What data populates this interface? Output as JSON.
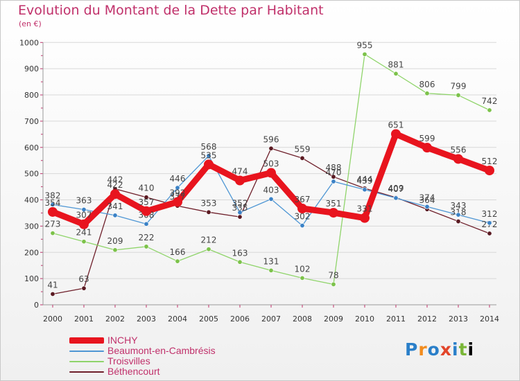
{
  "header": {
    "title": "Evolution du Montant de la Dette par Habitant",
    "unit": "(en €)"
  },
  "logo": {
    "text": "Proxiti"
  },
  "colors": {
    "grid": "#d8d8d8",
    "axis_text": "#333333",
    "label_text": "#444444",
    "title": "#c0306a"
  },
  "chart_data": {
    "type": "line",
    "title": "Evolution du Montant de la Dette par Habitant",
    "ylabel": "(en €)",
    "xlabel": "",
    "x": [
      "2000",
      "2001",
      "2002",
      "2003",
      "2004",
      "2005",
      "2006",
      "2007",
      "2008",
      "2009",
      "2010",
      "2011",
      "2012",
      "2013",
      "2014"
    ],
    "ylim": [
      0,
      1000
    ],
    "yticks": [
      0,
      100,
      200,
      300,
      400,
      500,
      600,
      700,
      800,
      900,
      1000
    ],
    "grid": true,
    "legend_position": "bottom-left",
    "series": [
      {
        "name": "Béthencourt",
        "color": "#6e1f2a",
        "marker": "#5a1a22",
        "values": [
          41,
          63,
          442,
          410,
          377,
          353,
          335,
          596,
          559,
          488,
          444,
          409,
          364,
          318,
          272
        ]
      },
      {
        "name": "Troisvilles",
        "color": "#8fd46a",
        "marker": "#7cc24a",
        "values": [
          273,
          241,
          209,
          222,
          166,
          212,
          163,
          131,
          102,
          78,
          955,
          881,
          806,
          799,
          742
        ]
      },
      {
        "name": "Beaumont-en-Cambrésis",
        "color": "#4e96d4",
        "marker": "#3b82c6",
        "values": [
          382,
          363,
          341,
          308,
          446,
          568,
          352,
          403,
          302,
          470,
          439,
          407,
          374,
          343,
          312
        ]
      },
      {
        "name": "INCHY",
        "color": "#e8141e",
        "marker": "#e8141e",
        "values": [
          354,
          307,
          422,
          357,
          392,
          535,
          474,
          503,
          367,
          351,
          331,
          651,
          599,
          556,
          512
        ]
      }
    ]
  }
}
